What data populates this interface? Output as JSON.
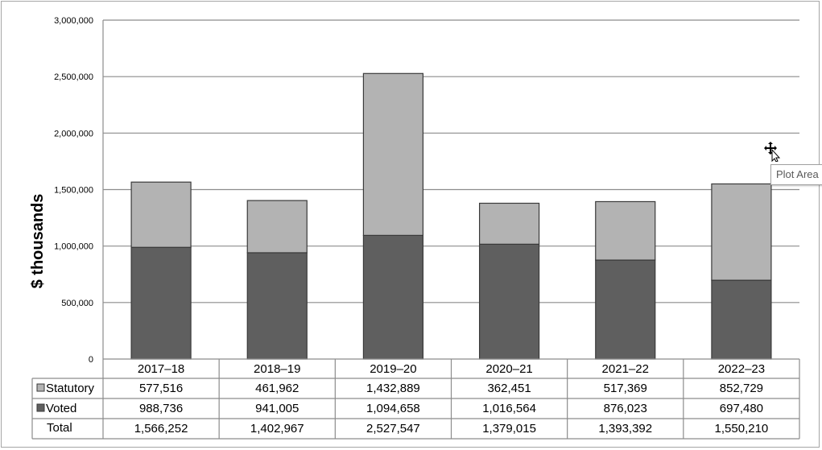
{
  "chart_data": {
    "type": "bar",
    "stacked": true,
    "categories": [
      "2017–18",
      "2018–19",
      "2019–20",
      "2020–21",
      "2021–22",
      "2022–23"
    ],
    "series": [
      {
        "name": "Statutory",
        "values": [
          577516,
          461962,
          1432889,
          362451,
          517369,
          852729
        ],
        "display": [
          "577,516",
          "461,962",
          "1,432,889",
          "362,451",
          "517,369",
          "852,729"
        ],
        "color": "#b3b3b3"
      },
      {
        "name": "Voted",
        "values": [
          988736,
          941005,
          1094658,
          1016564,
          876023,
          697480
        ],
        "display": [
          "988,736",
          "941,005",
          "1,094,658",
          "1,016,564",
          "876,023",
          "697,480"
        ],
        "color": "#5f5f5f"
      }
    ],
    "totals": {
      "name": "Total",
      "display": [
        "1,566,252",
        "1,402,967",
        "2,527,547",
        "1,379,015",
        "1,393,392",
        "1,550,210"
      ]
    },
    "ylabel": "$ thousands",
    "ylim": [
      0,
      3000000
    ],
    "yticks": [
      0,
      500000,
      1000000,
      1500000,
      2000000,
      2500000,
      3000000
    ],
    "ytick_labels": [
      "0",
      "500,000",
      "1,000,000",
      "1,500,000",
      "2,000,000",
      "2,500,000",
      "3,000,000"
    ],
    "grid": true,
    "legend": "data-table"
  },
  "tooltip": {
    "text": "Plot Area"
  },
  "cursor": {
    "icon": "move-cursor-icon"
  }
}
